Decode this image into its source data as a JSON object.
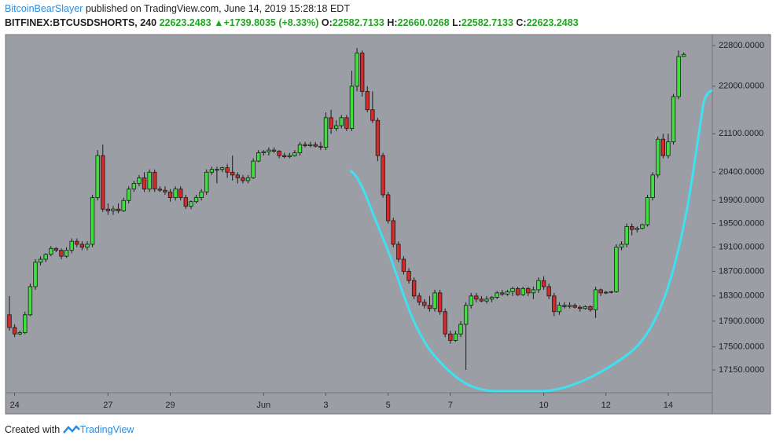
{
  "header": {
    "author": "BitcoinBearSlayer",
    "published": "published on TradingView.com, June 14, 2019 15:28:18 EDT",
    "symbol": "BITFINEX:BTCUSDSHORTS, 240",
    "last": "22623.2483",
    "arrow": "▲",
    "change": "+1739.8035 (+8.33%)",
    "o_label": "O:",
    "open": "22582.7133",
    "h_label": "H:",
    "high": "22660.0268",
    "l_label": "L:",
    "low": "22582.7133",
    "c_label": "C:",
    "close": "22623.2483"
  },
  "chart_data": {
    "type": "candlestick",
    "log": true,
    "colors": {
      "up": "#3ee03e",
      "down": "#d42a2a",
      "outline": "#1a1a1a",
      "background": "#9c9ea5"
    },
    "ylim": [
      16810,
      23020
    ],
    "yticks": [
      {
        "value": 22800,
        "label": "22800.0000"
      },
      {
        "value": 22000,
        "label": "22000.0000"
      },
      {
        "value": 21100,
        "label": "21100.0000"
      },
      {
        "value": 20400,
        "label": "20400.0000"
      },
      {
        "value": 19900,
        "label": "19900.0000"
      },
      {
        "value": 19500,
        "label": "19500.0000"
      },
      {
        "value": 19100,
        "label": "19100.0000"
      },
      {
        "value": 18700,
        "label": "18700.0000"
      },
      {
        "value": 18300,
        "label": "18300.0000"
      },
      {
        "value": 17900,
        "label": "17900.0000"
      },
      {
        "value": 17500,
        "label": "17500.0000"
      },
      {
        "value": 17150,
        "label": "17150.0000"
      }
    ],
    "xlim": [
      -0.76,
      135.5
    ],
    "xticks": [
      {
        "value": 1,
        "label": "24"
      },
      {
        "value": 19,
        "label": "27"
      },
      {
        "value": 31,
        "label": "29"
      },
      {
        "value": 49,
        "label": "Jun"
      },
      {
        "value": 61,
        "label": "3"
      },
      {
        "value": 73,
        "label": "5"
      },
      {
        "value": 85,
        "label": "7"
      },
      {
        "value": 103,
        "label": "10"
      },
      {
        "value": 115,
        "label": "12"
      },
      {
        "value": 127,
        "label": "14"
      }
    ],
    "candles": [
      [
        18000,
        18300,
        17750,
        17800
      ],
      [
        17800,
        17850,
        17650,
        17700
      ],
      [
        17700,
        17750,
        17680,
        17720
      ],
      [
        17720,
        18050,
        17700,
        18000
      ],
      [
        18000,
        18500,
        17980,
        18450
      ],
      [
        18450,
        18900,
        18400,
        18850
      ],
      [
        18850,
        18950,
        18800,
        18900
      ],
      [
        18900,
        19000,
        18850,
        18980
      ],
      [
        18980,
        19120,
        18950,
        19080
      ],
      [
        19080,
        19100,
        19020,
        19050
      ],
      [
        19050,
        19080,
        18900,
        18950
      ],
      [
        18950,
        19100,
        18920,
        19050
      ],
      [
        19050,
        19250,
        19000,
        19200
      ],
      [
        19200,
        19250,
        19100,
        19150
      ],
      [
        19150,
        19200,
        19050,
        19100
      ],
      [
        19100,
        19200,
        19050,
        19150
      ],
      [
        19150,
        20000,
        19100,
        19950
      ],
      [
        19950,
        20800,
        19900,
        20700
      ],
      [
        20700,
        20900,
        19700,
        19750
      ],
      [
        19750,
        19850,
        19650,
        19720
      ],
      [
        19720,
        19800,
        19650,
        19750
      ],
      [
        19750,
        19850,
        19680,
        19720
      ],
      [
        19720,
        19950,
        19700,
        19900
      ],
      [
        19900,
        20150,
        19850,
        20100
      ],
      [
        20100,
        20250,
        20050,
        20200
      ],
      [
        20200,
        20350,
        20150,
        20300
      ],
      [
        20300,
        20400,
        20050,
        20100
      ],
      [
        20100,
        20450,
        20050,
        20400
      ],
      [
        20400,
        20450,
        20050,
        20100
      ],
      [
        20100,
        20150,
        20050,
        20080
      ],
      [
        20080,
        20150,
        20000,
        20050
      ],
      [
        20050,
        20100,
        19880,
        19950
      ],
      [
        19950,
        20150,
        19900,
        20100
      ],
      [
        20100,
        20150,
        19900,
        19950
      ],
      [
        19950,
        20000,
        19750,
        19800
      ],
      [
        19800,
        19900,
        19750,
        19880
      ],
      [
        19880,
        20000,
        19850,
        19950
      ],
      [
        19950,
        20100,
        19900,
        20050
      ],
      [
        20050,
        20450,
        20000,
        20400
      ],
      [
        20400,
        20500,
        20350,
        20450
      ],
      [
        20450,
        20500,
        20200,
        20450
      ],
      [
        20450,
        20500,
        20400,
        20480
      ],
      [
        20480,
        20550,
        20300,
        20400
      ],
      [
        20400,
        20700,
        20250,
        20350
      ],
      [
        20350,
        20400,
        20200,
        20300
      ],
      [
        20300,
        20350,
        20200,
        20250
      ],
      [
        20250,
        20350,
        20200,
        20300
      ],
      [
        20300,
        20650,
        20280,
        20600
      ],
      [
        20600,
        20800,
        20580,
        20750
      ],
      [
        20750,
        20800,
        20700,
        20770
      ],
      [
        20770,
        20850,
        20700,
        20800
      ],
      [
        20800,
        20850,
        20750,
        20780
      ],
      [
        20780,
        20800,
        20650,
        20700
      ],
      [
        20700,
        20750,
        20650,
        20680
      ],
      [
        20680,
        20750,
        20650,
        20700
      ],
      [
        20700,
        20800,
        20680,
        20750
      ],
      [
        20750,
        20950,
        20700,
        20900
      ],
      [
        20900,
        20950,
        20850,
        20880
      ],
      [
        20880,
        20950,
        20850,
        20900
      ],
      [
        20900,
        20950,
        20850,
        20870
      ],
      [
        20870,
        20950,
        20800,
        20850
      ],
      [
        20850,
        21500,
        20800,
        21400
      ],
      [
        21400,
        21550,
        21100,
        21200
      ],
      [
        21200,
        21350,
        21150,
        21250
      ],
      [
        21250,
        21450,
        21200,
        21400
      ],
      [
        21400,
        21450,
        21150,
        21200
      ],
      [
        21200,
        22300,
        21150,
        22000
      ],
      [
        22000,
        22750,
        21900,
        22650
      ],
      [
        22650,
        22700,
        21800,
        21900
      ],
      [
        21900,
        22000,
        21500,
        21550
      ],
      [
        21550,
        21900,
        21300,
        21350
      ],
      [
        21350,
        21400,
        20600,
        20700
      ],
      [
        20700,
        20750,
        19950,
        20000
      ],
      [
        20000,
        20050,
        19500,
        19550
      ],
      [
        19550,
        19600,
        19100,
        19150
      ],
      [
        19150,
        19200,
        18850,
        18900
      ],
      [
        18900,
        18950,
        18650,
        18700
      ],
      [
        18700,
        18750,
        18500,
        18550
      ],
      [
        18550,
        18600,
        18250,
        18300
      ],
      [
        18300,
        18350,
        18150,
        18200
      ],
      [
        18200,
        18250,
        18100,
        18150
      ],
      [
        18150,
        18300,
        18050,
        18100
      ],
      [
        18100,
        18400,
        18050,
        18350
      ],
      [
        18350,
        18400,
        18000,
        18050
      ],
      [
        18050,
        18100,
        17650,
        17700
      ],
      [
        17700,
        17750,
        17550,
        17600
      ],
      [
        17600,
        17750,
        17580,
        17700
      ],
      [
        17700,
        17900,
        17650,
        17850
      ],
      [
        17850,
        18200,
        17150,
        18150
      ],
      [
        18150,
        18350,
        18100,
        18300
      ],
      [
        18300,
        18350,
        18200,
        18250
      ],
      [
        18250,
        18300,
        18200,
        18220
      ],
      [
        18220,
        18300,
        18180,
        18250
      ],
      [
        18250,
        18300,
        18200,
        18280
      ],
      [
        18280,
        18380,
        18250,
        18350
      ],
      [
        18350,
        18400,
        18300,
        18330
      ],
      [
        18330,
        18400,
        18300,
        18370
      ],
      [
        18370,
        18450,
        18300,
        18420
      ],
      [
        18420,
        18450,
        18300,
        18320
      ],
      [
        18320,
        18450,
        18300,
        18420
      ],
      [
        18420,
        18450,
        18300,
        18350
      ],
      [
        18350,
        18450,
        18250,
        18400
      ],
      [
        18400,
        18600,
        18350,
        18550
      ],
      [
        18550,
        18620,
        18400,
        18450
      ],
      [
        18450,
        18500,
        18250,
        18300
      ],
      [
        18300,
        18350,
        17980,
        18050
      ],
      [
        18050,
        18200,
        18000,
        18150
      ],
      [
        18150,
        18200,
        18100,
        18130
      ],
      [
        18130,
        18200,
        18100,
        18150
      ],
      [
        18150,
        18180,
        18100,
        18120
      ],
      [
        18120,
        18150,
        18050,
        18100
      ],
      [
        18100,
        18150,
        18080,
        18130
      ],
      [
        18130,
        18150,
        18050,
        18080
      ],
      [
        18080,
        18450,
        17950,
        18400
      ],
      [
        18400,
        18420,
        18300,
        18350
      ],
      [
        18350,
        18380,
        18330,
        18360
      ],
      [
        18360,
        18380,
        18340,
        18370
      ],
      [
        18370,
        19150,
        18350,
        19100
      ],
      [
        19100,
        19200,
        19050,
        19150
      ],
      [
        19150,
        19500,
        19100,
        19450
      ],
      [
        19450,
        19500,
        19300,
        19400
      ],
      [
        19400,
        19450,
        19350,
        19420
      ],
      [
        19420,
        19500,
        19400,
        19480
      ],
      [
        19480,
        20000,
        19450,
        19950
      ],
      [
        19950,
        20400,
        19900,
        20350
      ],
      [
        20350,
        21050,
        20300,
        21000
      ],
      [
        21000,
        21100,
        20650,
        20700
      ],
      [
        20700,
        21100,
        20650,
        20950
      ],
      [
        20950,
        21850,
        20900,
        21800
      ],
      [
        21800,
        22700,
        21750,
        22580
      ],
      [
        22582.7133,
        22660.0268,
        22582.7133,
        22623.2483
      ]
    ]
  },
  "footer": {
    "created": "Created with",
    "brand": "TradingView"
  }
}
